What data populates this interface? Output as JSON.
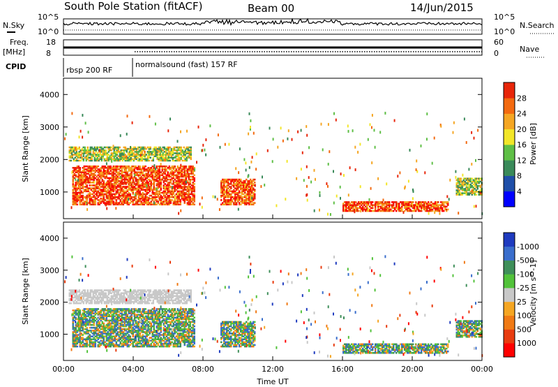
{
  "header": {
    "station": "South Pole Station (fitACF)",
    "beam": "Beam 00",
    "date": "14/Jun/2015"
  },
  "summary_panels": {
    "nsky_label": "N.Sky",
    "nsearch_label": "N.Search",
    "nsky_ticks": [
      "10^5",
      "10^0"
    ],
    "nsearch_ticks": [
      "10^5",
      "10^0"
    ],
    "freq_label": "Freq.",
    "freq_unit": "[MHz]",
    "freq_ticks": [
      "18",
      "8"
    ],
    "nave_label": "Nave",
    "nave_ticks": [
      "60",
      "0"
    ],
    "cpid_label": "CPID",
    "cpid_segments": [
      "rbsp 200 RF",
      "normalsound (fast) 157 RF"
    ]
  },
  "colors": {
    "power_scale": [
      "#0000ff",
      "#1f4fa8",
      "#3a8a5a",
      "#5fbf46",
      "#f2e628",
      "#f5a623",
      "#f36a10",
      "#e8260a",
      "#ff0000"
    ],
    "velocity_scale": [
      "#1f3bbf",
      "#3a6ecc",
      "#3f8f5a",
      "#52c23a",
      "#c8c8c8",
      "#f5a623",
      "#f07a15",
      "#e83c10",
      "#ff0000"
    ]
  },
  "chart_data": [
    {
      "type": "heatmap",
      "name": "power",
      "ylabel": "Slant Range [km]",
      "xlim": [
        "00:00",
        "24:00"
      ],
      "ylim": [
        180,
        4500
      ],
      "y_ticks": [
        "1000",
        "2000",
        "3000",
        "4000"
      ],
      "colorbar_label": "Power [dB]",
      "colorbar_ticks": [
        "4",
        "8",
        "12",
        "16",
        "20",
        "24",
        "28"
      ],
      "echo_regions": [
        {
          "t0": 0.5,
          "t1": 7.5,
          "r0": 600,
          "r1": 1800,
          "level": "high"
        },
        {
          "t0": 0.3,
          "t1": 7.3,
          "r0": 1950,
          "r1": 2400,
          "level": "mid"
        },
        {
          "t0": 9.0,
          "t1": 11.0,
          "r0": 600,
          "r1": 1400,
          "level": "high"
        },
        {
          "t0": 16.0,
          "t1": 22.0,
          "r0": 400,
          "r1": 700,
          "level": "high"
        },
        {
          "t0": 22.5,
          "t1": 24.0,
          "r0": 900,
          "r1": 1400,
          "level": "mid"
        }
      ]
    },
    {
      "type": "heatmap",
      "name": "velocity",
      "ylabel": "Slant Range [km]",
      "xlabel": "Time UT",
      "xlim": [
        "00:00",
        "24:00"
      ],
      "ylim": [
        180,
        4500
      ],
      "x_ticks": [
        "00:00",
        "04:00",
        "08:00",
        "12:00",
        "16:00",
        "20:00",
        "00:00"
      ],
      "y_ticks": [
        "1000",
        "2000",
        "3000",
        "4000"
      ],
      "colorbar_label": "Velocity [m s^-1]",
      "colorbar_ticks": [
        "1000",
        "500",
        "100",
        "25",
        "-25",
        "-100",
        "-500",
        "-1000"
      ]
    }
  ]
}
